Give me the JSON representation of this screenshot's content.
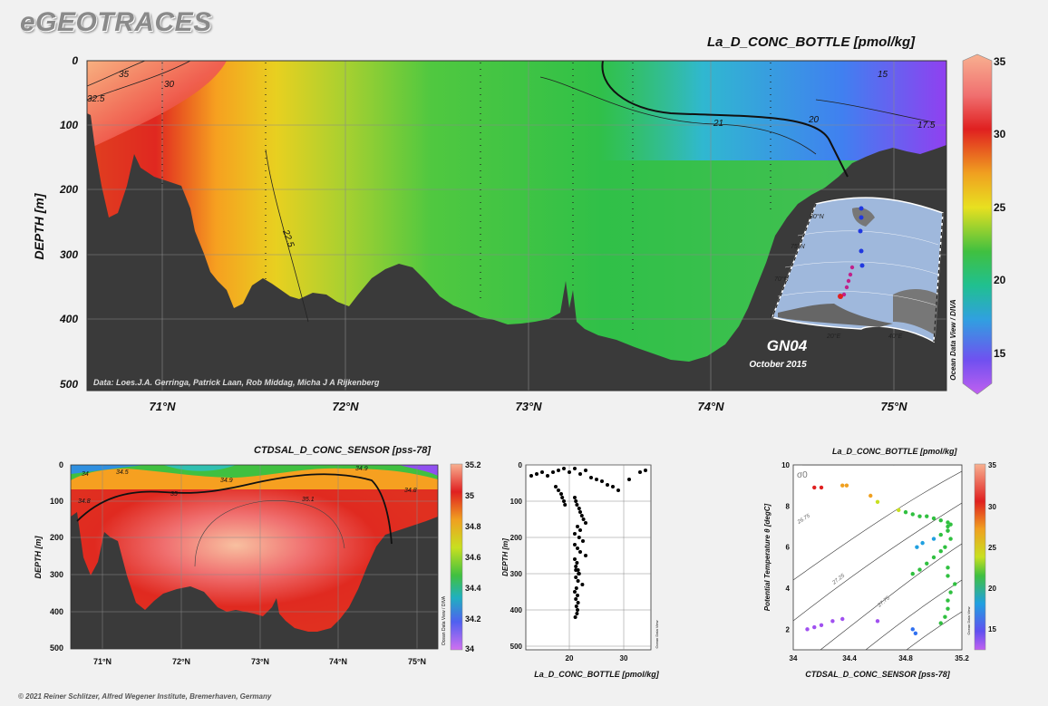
{
  "brand": "eGEOTRACES",
  "copyright": "© 2021 Reiner Schlitzer, Alfred Wegener Institute, Bremerhaven, Germany",
  "colors": {
    "land": "#3a3a3a",
    "background": "#f1f1f1",
    "grid": "#8a8a8a"
  },
  "main_section": {
    "title": "La_D_CONC_BOTTLE [pmol/kg]",
    "ylabel": "DEPTH [m]",
    "y_ticks": [
      "0",
      "100",
      "200",
      "300",
      "400",
      "500"
    ],
    "x_ticks": [
      "71°N",
      "72°N",
      "73°N",
      "74°N",
      "75°N"
    ],
    "ylim": [
      0,
      500
    ],
    "xlim": [
      70.6,
      75.3
    ],
    "credit": "Data: Loes.J.A. Gerringa, Patrick Laan, Rob Middag, Micha J A Rijkenberg",
    "cruise": "GN04",
    "date": "October 2015",
    "odv": "Ocean Data View / DIVA",
    "contour_labels": [
      "35",
      "32.5",
      "30",
      "22.5",
      "21",
      "20",
      "17.5",
      "15"
    ],
    "colorbar_ticks": [
      "35",
      "30",
      "25",
      "20",
      "15"
    ],
    "colorbar_range": [
      12.5,
      35
    ]
  },
  "map_inset": {
    "lat_labels": [
      "80°N",
      "75°N",
      "70°N"
    ],
    "lon_labels": [
      "0",
      "20°E",
      "40°E"
    ],
    "corner_label": ""
  },
  "salinity_section": {
    "title": "CTDSAL_D_CONC_SENSOR [pss-78]",
    "ylabel": "DEPTH [m]",
    "y_ticks": [
      "0",
      "100",
      "200",
      "300",
      "400",
      "500"
    ],
    "x_ticks": [
      "71°N",
      "72°N",
      "73°N",
      "74°N",
      "75°N"
    ],
    "contour_labels": [
      "34",
      "34.5",
      "34.8",
      "34.9",
      "35",
      "35.1",
      "34.9",
      "34.8"
    ],
    "colorbar_ticks": [
      "35.2",
      "35",
      "34.8",
      "34.6",
      "34.4",
      "34.2",
      "34"
    ],
    "odv": "Ocean Data View / DIVA"
  },
  "profile_plot": {
    "xlabel": "La_D_CONC_BOTTLE [pmol/kg]",
    "ylabel": "DEPTH [m]",
    "x_ticks": [
      "20",
      "30"
    ],
    "y_ticks": [
      "0",
      "100",
      "200",
      "300",
      "400",
      "500"
    ],
    "xlim": [
      12,
      35
    ],
    "ylim": [
      0,
      510
    ],
    "odv": "Ocean Data View"
  },
  "ts_plot": {
    "title": "La_D_CONC_BOTTLE [pmol/kg]",
    "xlabel": "CTDSAL_D_CONC_SENSOR [pss-78]",
    "ylabel": "Potential Temperature θ [degC]",
    "x_ticks": [
      "34",
      "34.4",
      "34.8",
      "35.2"
    ],
    "y_ticks": [
      "10",
      "8",
      "6",
      "4",
      "2"
    ],
    "xlim": [
      34,
      35.2
    ],
    "ylim": [
      1,
      10
    ],
    "sigma_label": "σ0",
    "isopycnal_labels": [
      "26.75",
      "27.25",
      "27.75"
    ],
    "colorbar_ticks": [
      "35",
      "30",
      "25",
      "20",
      "15"
    ],
    "odv": "Ocean Data View"
  },
  "chart_data": [
    {
      "type": "scatter",
      "title": "",
      "xlabel": "La_D_CONC_BOTTLE [pmol/kg]",
      "ylabel": "DEPTH [m]",
      "xlim": [
        12,
        35
      ],
      "ylim": [
        0,
        510
      ],
      "x": [
        13,
        14,
        15,
        16,
        17,
        18,
        19,
        20,
        21,
        22,
        23,
        24,
        25,
        26,
        27,
        28,
        29,
        31,
        33,
        34,
        17.5,
        18,
        18.5,
        18.7,
        19,
        19.2,
        21,
        21.2,
        21.4,
        21.8,
        22,
        22.3,
        22.6,
        23,
        21.5,
        22,
        21,
        21.8,
        22.5,
        21,
        21.5,
        22,
        23,
        21,
        21.4,
        21.2,
        21.6,
        21.8,
        21.2,
        21.6,
        22.4,
        21.3,
        21,
        21.5,
        21.2,
        21.6,
        21.3,
        21.5,
        21.4,
        21.1,
        21.7,
        21.2
      ],
      "y": [
        30,
        25,
        20,
        30,
        20,
        15,
        10,
        20,
        10,
        25,
        15,
        35,
        40,
        45,
        55,
        60,
        70,
        40,
        20,
        15,
        60,
        70,
        80,
        90,
        100,
        110,
        90,
        100,
        110,
        120,
        130,
        140,
        150,
        160,
        170,
        180,
        190,
        200,
        210,
        220,
        230,
        240,
        250,
        260,
        270,
        280,
        290,
        300,
        310,
        320,
        330,
        340,
        350,
        360,
        370,
        380,
        390,
        400,
        410,
        420,
        300,
        290
      ],
      "series": []
    },
    {
      "type": "scatter",
      "title": "La_D_CONC_BOTTLE [pmol/kg]",
      "xlabel": "CTDSAL_D_CONC_SENSOR [pss-78]",
      "ylabel": "Potential Temperature θ [degC]",
      "xlim": [
        34,
        35.2
      ],
      "ylim": [
        1,
        10
      ],
      "x": [
        34.15,
        34.2,
        34.35,
        34.38,
        34.55,
        34.6,
        34.75,
        34.8,
        34.85,
        34.9,
        34.95,
        35.0,
        35.05,
        35.1,
        35.1,
        35.12,
        35.08,
        35.05,
        35.0,
        34.95,
        34.9,
        34.85,
        35.1,
        35.1,
        35.15,
        35.12,
        35.1,
        35.1,
        35.08,
        35.05,
        34.88,
        34.92,
        35.0,
        35.05,
        35.1,
        35.1,
        35.12,
        34.85,
        34.87,
        34.1,
        34.15,
        34.2,
        34.28,
        34.35,
        34.6
      ],
      "y": [
        8.9,
        8.9,
        9.0,
        9.0,
        8.5,
        8.2,
        7.8,
        7.7,
        7.6,
        7.5,
        7.5,
        7.4,
        7.3,
        7.2,
        6.8,
        6.4,
        6.0,
        5.8,
        5.5,
        5.2,
        4.9,
        4.7,
        5.0,
        4.6,
        4.2,
        3.8,
        3.4,
        3.0,
        2.6,
        2.3,
        6.0,
        6.2,
        6.4,
        6.6,
        6.8,
        7.0,
        7.1,
        2.0,
        1.8,
        2.0,
        2.1,
        2.2,
        2.4,
        2.5,
        2.4
      ],
      "values": [
        30,
        31,
        29,
        28,
        27,
        26,
        24,
        23,
        22,
        22,
        21,
        21,
        21,
        21,
        21,
        21,
        21,
        21,
        21,
        21,
        21,
        21,
        21,
        21,
        21,
        21,
        21,
        21,
        21,
        21,
        19,
        19,
        20,
        21,
        21,
        21,
        21,
        17,
        16,
        14,
        14,
        14,
        13,
        14,
        14
      ]
    }
  ]
}
